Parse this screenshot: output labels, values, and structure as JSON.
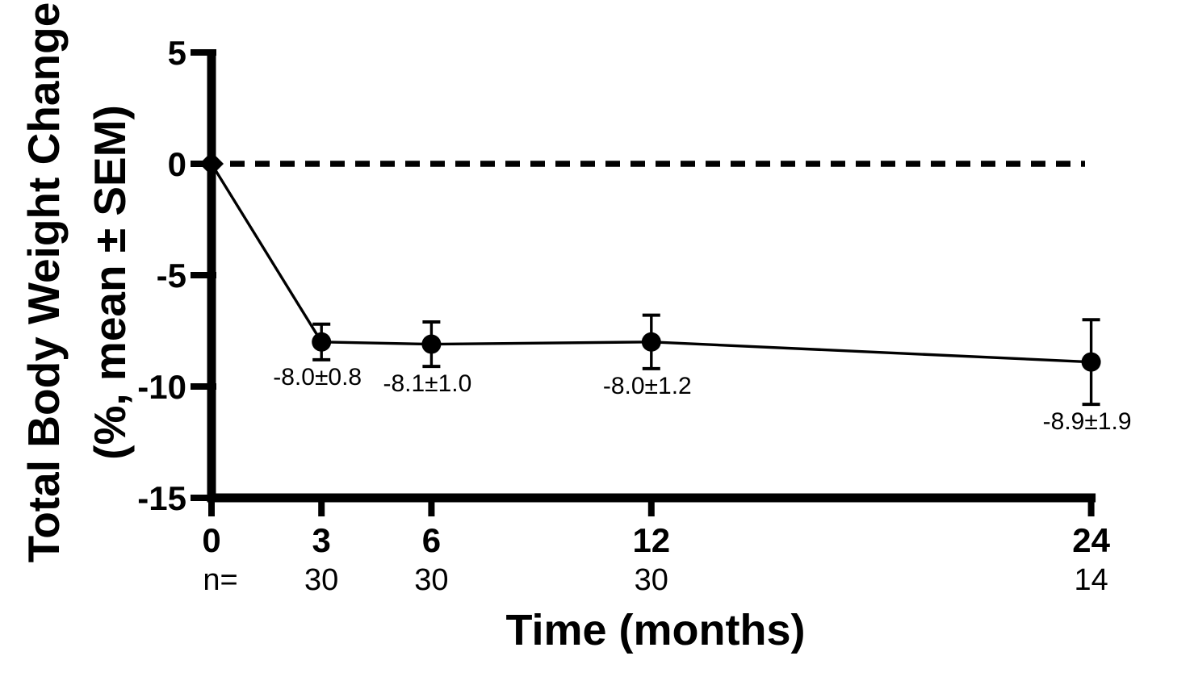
{
  "figure": {
    "background": "#ffffff",
    "ink": "#000000"
  },
  "chart_data": {
    "type": "line",
    "title": "",
    "xlabel": "Time (months)",
    "ylabel": "Total Body Weight Change (%, mean ± SEM)",
    "ylabel_lines": [
      "Total Body Weight Change",
      "(%, mean ± SEM)"
    ],
    "x": [
      0,
      3,
      6,
      12,
      24
    ],
    "xtick_labels": [
      "0",
      "3",
      "6",
      "12",
      "24"
    ],
    "ytick_values": [
      5,
      0,
      -5,
      -10,
      -15
    ],
    "ytick_labels": [
      "5",
      "0",
      "-5",
      "-10",
      "-15"
    ],
    "xlim": [
      0,
      24
    ],
    "ylim": [
      -15,
      5
    ],
    "grid": false,
    "legend_position": "none",
    "reference_line": {
      "y": 0,
      "style": "dashed"
    },
    "series": [
      {
        "name": "Total body weight change (%, mean ± SEM)",
        "values": [
          0,
          -8.0,
          -8.1,
          -8.0,
          -8.9
        ],
        "sem": [
          0,
          0.8,
          1.0,
          1.2,
          1.9
        ],
        "markers": [
          "diamond",
          "circle",
          "circle",
          "circle",
          "circle"
        ],
        "point_labels": [
          "",
          "-8.0±0.8",
          "-8.1±1.0",
          "-8.0±1.2",
          "-8.9±1.9"
        ]
      }
    ],
    "n_row": {
      "label": "n=",
      "values": [
        "",
        "30",
        "30",
        "30",
        "14"
      ]
    }
  }
}
